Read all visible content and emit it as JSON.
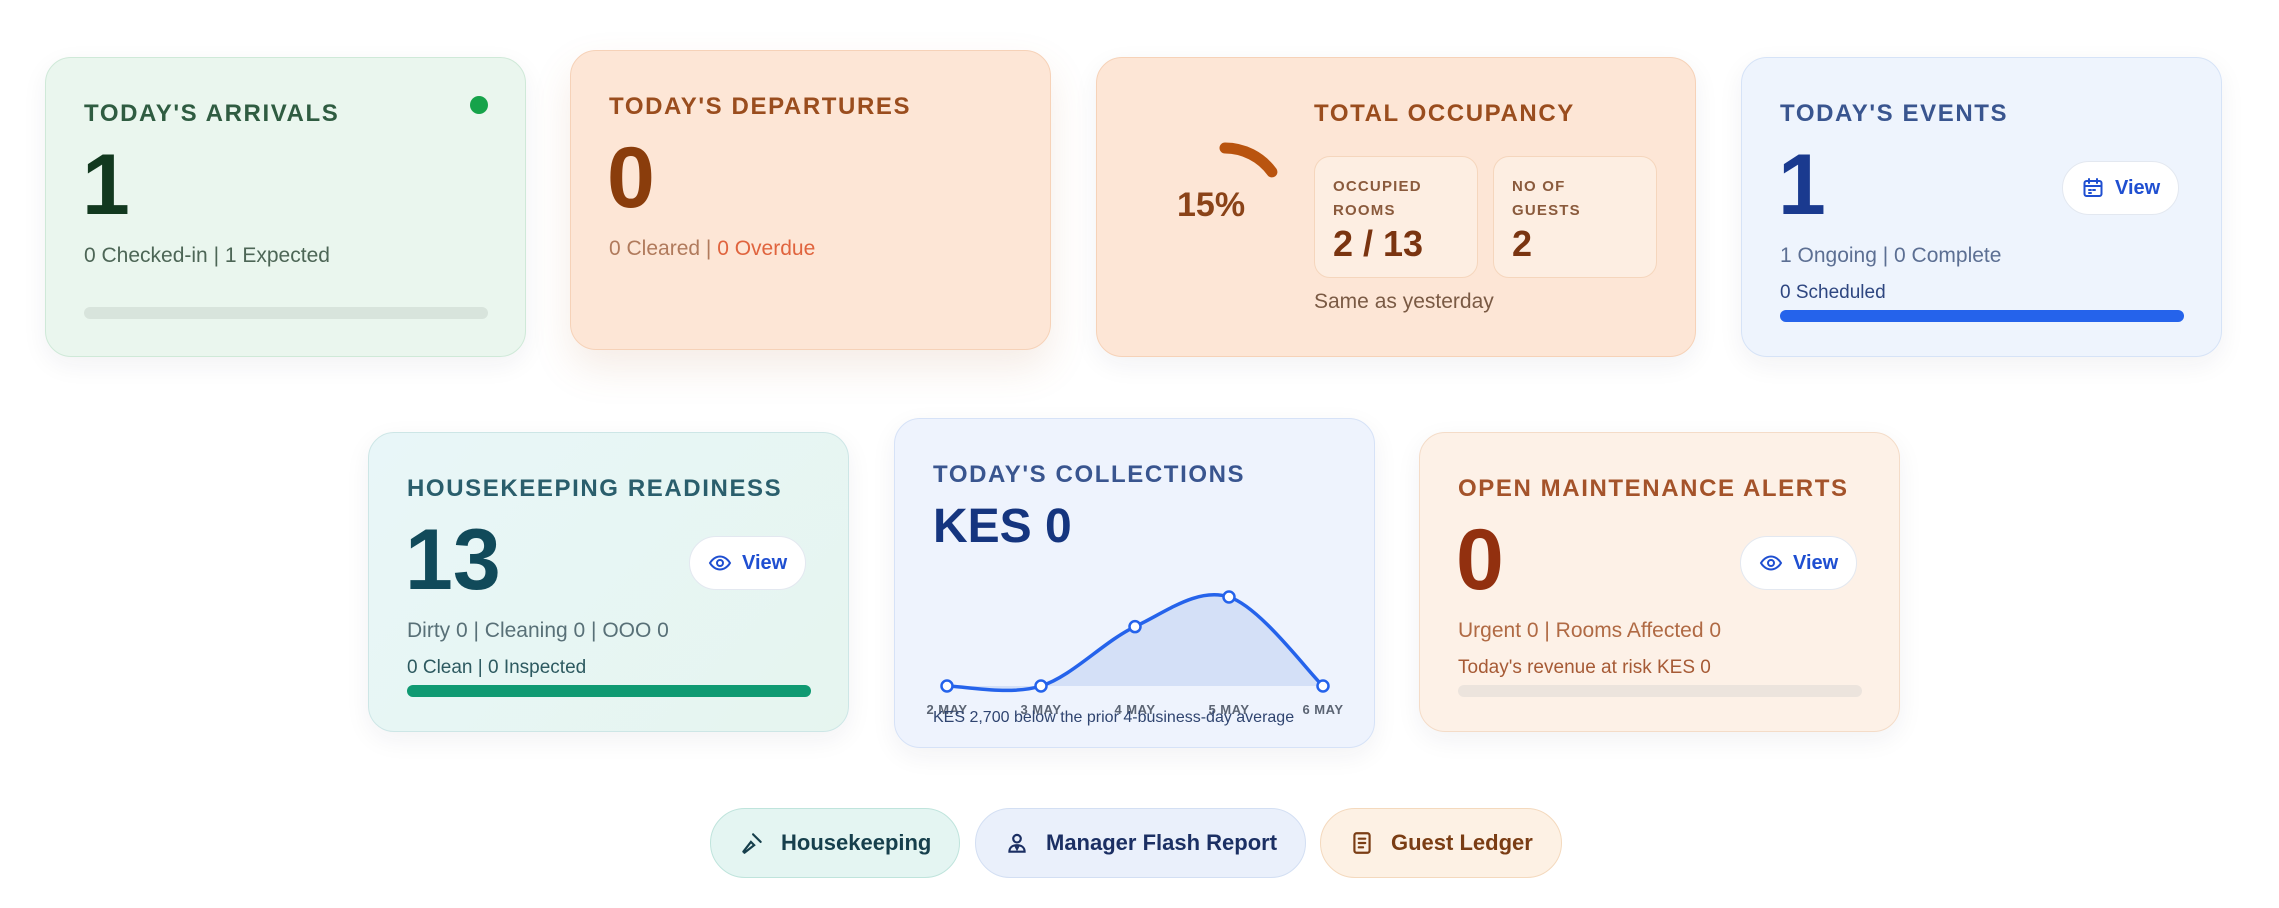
{
  "arrivals": {
    "label": "TODAY'S ARRIVALS",
    "count": "1",
    "detail": "0 Checked-in | 1 Expected",
    "progress": 0
  },
  "departures": {
    "label": "TODAY'S DEPARTURES",
    "count": "0",
    "cleared": "0 Cleared",
    "separator": " | ",
    "overdue": "0 Overdue"
  },
  "occupancy": {
    "label": "TOTAL OCCUPANCY",
    "percent_text": "15%",
    "percent": 15,
    "rooms_label": "OCCUPIED ROOMS",
    "rooms_value": "2 / 13",
    "guests_label": "NO OF GUESTS",
    "guests_value": "2",
    "comparison": "Same as yesterday"
  },
  "events": {
    "label": "TODAY'S EVENTS",
    "count": "1",
    "detail": "1 Ongoing | 0 Complete",
    "scheduled": "0 Scheduled",
    "view_label": "View",
    "progress": 100
  },
  "housekeeping": {
    "label": "HOUSEKEEPING READINESS",
    "count": "13",
    "detail": "Dirty 0 | Cleaning 0 | OOO 0",
    "clean": "0 Clean | 0 Inspected",
    "view_label": "View",
    "progress": 100
  },
  "collections": {
    "label": "TODAY'S COLLECTIONS",
    "amount": "KES 0",
    "note": "KES 2,700 below the prior 4-business-day average"
  },
  "maintenance": {
    "label": "OPEN MAINTENANCE ALERTS",
    "count": "0",
    "detail": "Urgent 0 | Rooms Affected 0",
    "revenue": "Today's revenue at risk KES 0",
    "view_label": "View",
    "progress": 0
  },
  "quick_links": {
    "housekeeping": "Housekeeping",
    "manager_flash": "Manager Flash Report",
    "guest_ledger": "Guest Ledger"
  },
  "colors": {
    "green": "#16a34a",
    "blue": "#2563eb",
    "teal": "#0f9a72",
    "orange": "#b9540f"
  },
  "chart_data": {
    "type": "area",
    "categories": [
      "2 MAY",
      "3 MAY",
      "4 MAY",
      "5 MAY",
      "6 MAY"
    ],
    "values": [
      0,
      0,
      2,
      3,
      0
    ]
  }
}
